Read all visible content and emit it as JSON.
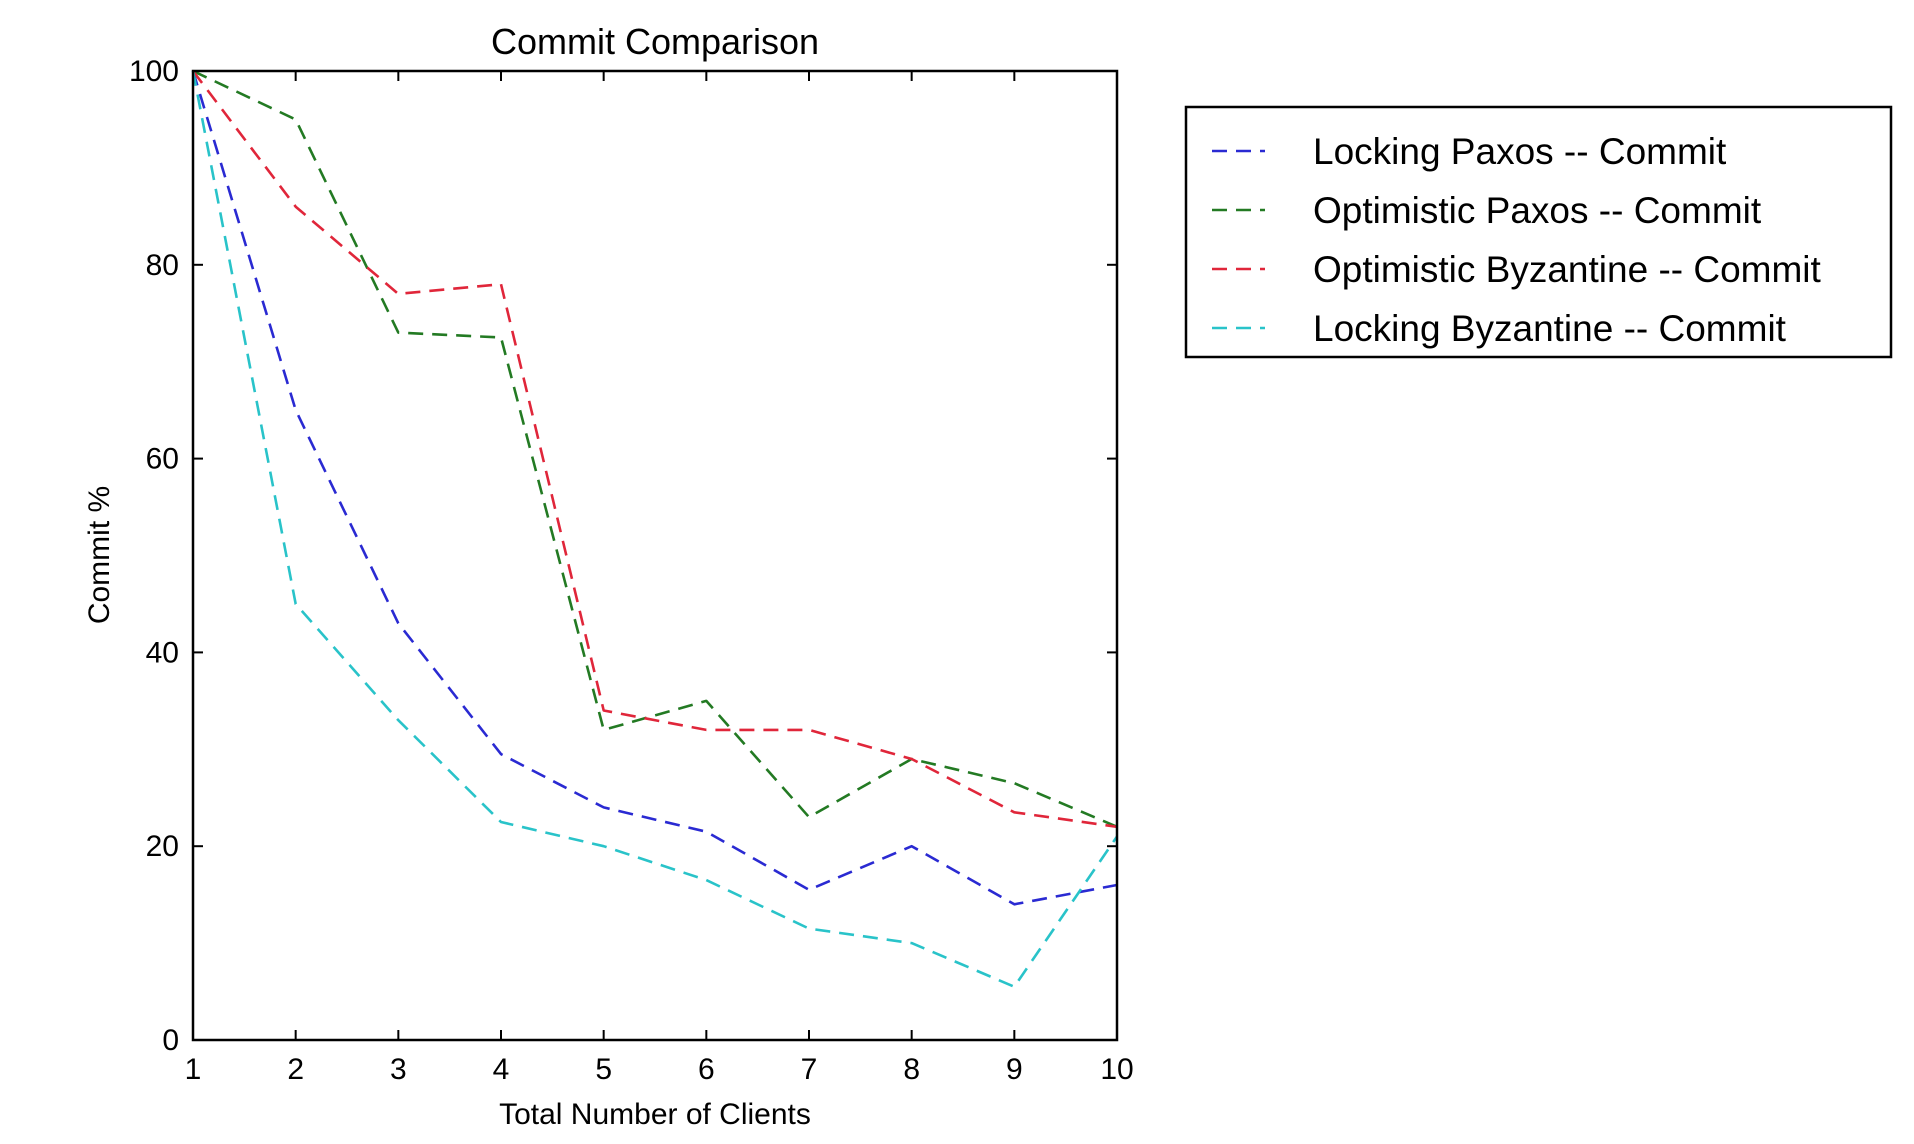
{
  "chart_data": {
    "type": "line",
    "title": "Commit Comparison",
    "xlabel": "Total Number of Clients",
    "ylabel": "Commit %",
    "x": [
      1,
      2,
      3,
      4,
      5,
      6,
      7,
      8,
      9,
      10
    ],
    "xlim": [
      1,
      10
    ],
    "ylim": [
      0,
      100
    ],
    "xticks": [
      "1",
      "2",
      "3",
      "4",
      "5",
      "6",
      "7",
      "8",
      "9",
      "10"
    ],
    "yticks": [
      "0",
      "20",
      "40",
      "60",
      "80",
      "100"
    ],
    "grid": false,
    "line_style": "dashed",
    "legend_position": "outside-right-top",
    "series": [
      {
        "name": "Locking Paxos -- Commit",
        "color": "#2a2ad2",
        "values": [
          100,
          65,
          43,
          29.5,
          24,
          21.5,
          15.5,
          20,
          14,
          16
        ]
      },
      {
        "name": "Optimistic Paxos -- Commit",
        "color": "#237a23",
        "values": [
          100,
          95,
          73,
          72.5,
          32,
          35,
          23,
          29,
          26.5,
          22
        ]
      },
      {
        "name": "Optimistic Byzantine -- Commit",
        "color": "#e0263a",
        "values": [
          100,
          86,
          77,
          78,
          34,
          32,
          32,
          29,
          23.5,
          22
        ]
      },
      {
        "name": "Locking Byzantine -- Commit",
        "color": "#29c3c9",
        "values": [
          100,
          45,
          33,
          22.5,
          20,
          16.5,
          11.5,
          10,
          5.5,
          21
        ]
      }
    ]
  }
}
